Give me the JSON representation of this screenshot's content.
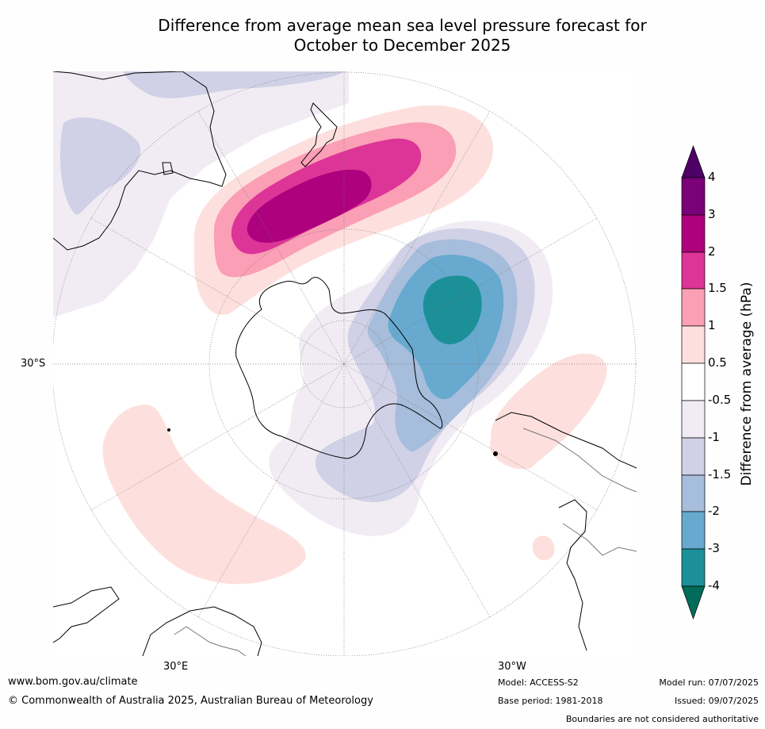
{
  "title": {
    "line1": "Difference from average mean sea level pressure forecast for",
    "line2": "October to December 2025"
  },
  "map": {
    "lat_label": "30°S",
    "lon_labels": [
      "30°E",
      "30°W"
    ]
  },
  "colorbar": {
    "title": "Difference from average (hPa)",
    "ticks": [
      "4",
      "3",
      "2",
      "1.5",
      "1",
      "0.5",
      "-0.5",
      "-1",
      "-1.5",
      "-2",
      "-3",
      "-4"
    ],
    "colors": {
      "above_4": "#4d0066",
      "3_to_4": "#7a0177",
      "2_to_3": "#ae017e",
      "1_5_to_2": "#dd3497",
      "1_to_1_5": "#fa9fb5",
      "0_5_to_1": "#fde0dd",
      "neutral": "#ffffff",
      "m1_to_m0_5": "#f1ecf4",
      "m1_5_to_m1": "#d0d1e6",
      "m2_to_m1_5": "#a6bddb",
      "m3_to_m2": "#67a9cf",
      "m4_to_m3": "#1c9099",
      "below_m4": "#016c59"
    }
  },
  "footer": {
    "url": "www.bom.gov.au/climate",
    "copyright": "© Commonwealth of Australia 2025, Australian Bureau of Meteorology",
    "model": "Model: ACCESS-S2",
    "base_period": "Base period: 1981-2018",
    "model_run": "Model run: 07/07/2025",
    "issued": "Issued: 09/07/2025",
    "disclaimer": "Boundaries are not considered authoritative"
  }
}
